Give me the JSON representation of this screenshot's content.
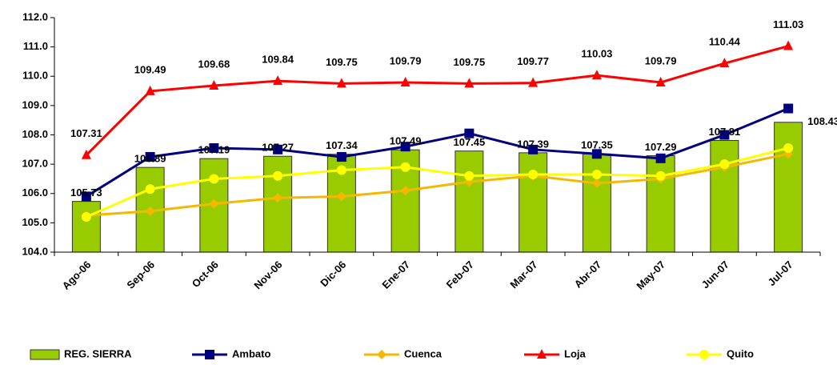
{
  "chart_data": {
    "type": "combo",
    "categories": [
      "Ago-06",
      "Sep-06",
      "Oct-06",
      "Nov-06",
      "Dic-06",
      "Ene-07",
      "Feb-07",
      "Mar-07",
      "Abr-07",
      "May-07",
      "Jun-07",
      "Jul-07"
    ],
    "series": [
      {
        "name": "REG. SIERRA",
        "type": "bar",
        "color": "#99cc00",
        "labels": true,
        "values": [
          105.73,
          106.89,
          107.19,
          107.27,
          107.34,
          107.49,
          107.45,
          107.39,
          107.35,
          107.29,
          107.81,
          108.43
        ]
      },
      {
        "name": "Ambato",
        "type": "line",
        "marker": "square",
        "color": "#000080",
        "labels": false,
        "values": [
          105.9,
          107.25,
          107.55,
          107.5,
          107.25,
          107.6,
          108.05,
          107.5,
          107.35,
          107.2,
          108.0,
          108.9
        ]
      },
      {
        "name": "Cuenca",
        "type": "line",
        "marker": "diamond",
        "color": "#f5b800",
        "labels": false,
        "values": [
          105.25,
          105.4,
          105.65,
          105.85,
          105.9,
          106.1,
          106.4,
          106.6,
          106.35,
          106.5,
          106.9,
          107.35
        ]
      },
      {
        "name": "Loja",
        "type": "line",
        "marker": "triangle",
        "color": "#ff0000",
        "labels": true,
        "values": [
          107.31,
          109.49,
          109.68,
          109.84,
          109.75,
          109.79,
          109.75,
          109.77,
          110.03,
          109.79,
          110.44,
          111.03
        ]
      },
      {
        "name": "Quito",
        "type": "line",
        "marker": "circle",
        "color": "#ffff00",
        "labels": false,
        "values": [
          105.2,
          106.15,
          106.5,
          106.6,
          106.8,
          106.9,
          106.6,
          106.65,
          106.65,
          106.6,
          107.0,
          107.55
        ]
      }
    ],
    "ylim": [
      104,
      112
    ],
    "yticks": [
      {
        "value": 104,
        "label": "104.0"
      },
      {
        "value": 105,
        "label": "105.0"
      },
      {
        "value": 106,
        "label": "106.0"
      },
      {
        "value": 107,
        "label": "107.0"
      },
      {
        "value": 108,
        "label": "108.0"
      },
      {
        "value": 109,
        "label": "109.0"
      },
      {
        "value": 110,
        "label": "110.0"
      },
      {
        "value": 111,
        "label": "111.0"
      },
      {
        "value": 112,
        "label": "112.0"
      }
    ],
    "grid": false,
    "legend": "bottom"
  }
}
